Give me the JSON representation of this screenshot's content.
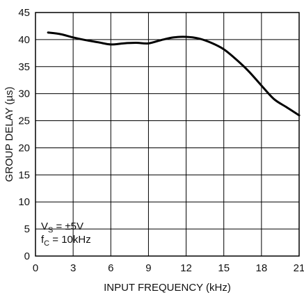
{
  "chart_data": {
    "type": "line",
    "title": "",
    "xlabel": "INPUT FREQUENCY (kHz)",
    "ylabel": "GROUP DELAY (µs)",
    "xlim": [
      0,
      21
    ],
    "ylim": [
      0,
      45
    ],
    "xticks": [
      0,
      3,
      6,
      9,
      12,
      15,
      18,
      21
    ],
    "yticks": [
      0,
      5,
      10,
      15,
      20,
      25,
      30,
      35,
      40,
      45
    ],
    "xtick_labels": [
      "0",
      "3",
      "6",
      "9",
      "12",
      "15",
      "18",
      "21"
    ],
    "ytick_labels": [
      "0",
      "5",
      "10",
      "15",
      "20",
      "25",
      "30",
      "35",
      "40",
      "45"
    ],
    "grid": true,
    "series": [
      {
        "color": "#000000",
        "x": [
          1,
          2,
          3,
          4,
          5,
          6,
          7,
          8,
          9,
          10,
          11,
          12,
          13,
          14,
          15,
          16,
          17,
          18,
          19,
          20,
          21
        ],
        "y": [
          41.3,
          41.0,
          40.4,
          39.9,
          39.5,
          39.1,
          39.3,
          39.4,
          39.3,
          39.9,
          40.4,
          40.5,
          40.2,
          39.4,
          38.2,
          36.3,
          34.1,
          31.5,
          29.0,
          27.5,
          26.0
        ]
      }
    ],
    "annotations": {
      "vs_main": "V",
      "vs_sub": "S",
      "vs_rest": " = ±5V",
      "fc_main": "f",
      "fc_sub": "C",
      "fc_rest": " = 10kHz"
    }
  }
}
